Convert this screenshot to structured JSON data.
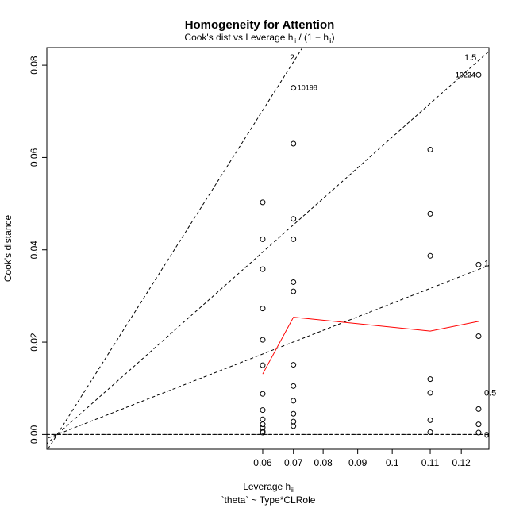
{
  "chart_data": {
    "type": "scatter",
    "title": "Homogeneity for Attention",
    "subtitle": "Cook's dist vs Leverage  h",
    "subtitle_sub": "ii",
    "subtitle_tail_1": " / (1 − h",
    "subtitle_tail_sub": "ii",
    "subtitle_tail_2": ")",
    "xlabel": "Leverage  h",
    "xlabel_sub": "ii",
    "xlabel_2": "`theta` ~ Type*CLRole",
    "ylabel": "Cook's distance",
    "xlim": [
      0.0,
      0.128
    ],
    "ylim": [
      -0.0032,
      0.0838
    ],
    "x_ticks": [
      {
        "value": 0.0625,
        "label": "0.06"
      },
      {
        "value": 0.0714,
        "label": "0.07"
      },
      {
        "value": 0.08,
        "label": "0.08"
      },
      {
        "value": 0.09,
        "label": "0.09"
      },
      {
        "value": 0.1,
        "label": "0.1"
      },
      {
        "value": 0.111,
        "label": "0.11"
      },
      {
        "value": 0.12,
        "label": "0.12"
      }
    ],
    "y_ticks": [
      {
        "value": 0.0,
        "label": "0.00"
      },
      {
        "value": 0.02,
        "label": "0.02"
      },
      {
        "value": 0.04,
        "label": "0.04"
      },
      {
        "value": 0.06,
        "label": "0.06"
      },
      {
        "value": 0.08,
        "label": "0.08"
      }
    ],
    "points": [
      {
        "x": 0.0625,
        "y": 0.0503
      },
      {
        "x": 0.0625,
        "y": 0.0423
      },
      {
        "x": 0.0625,
        "y": 0.0358
      },
      {
        "x": 0.0625,
        "y": 0.0273
      },
      {
        "x": 0.0625,
        "y": 0.0205
      },
      {
        "x": 0.0625,
        "y": 0.015
      },
      {
        "x": 0.0625,
        "y": 0.0088
      },
      {
        "x": 0.0625,
        "y": 0.0053
      },
      {
        "x": 0.0625,
        "y": 0.0033
      },
      {
        "x": 0.0625,
        "y": 0.0022
      },
      {
        "x": 0.0625,
        "y": 0.0015
      },
      {
        "x": 0.0625,
        "y": 0.0007
      },
      {
        "x": 0.0625,
        "y": 0.0004
      },
      {
        "x": 0.0714,
        "y": 0.0751
      },
      {
        "x": 0.0714,
        "y": 0.063
      },
      {
        "x": 0.0714,
        "y": 0.0467
      },
      {
        "x": 0.0714,
        "y": 0.0423
      },
      {
        "x": 0.0714,
        "y": 0.033
      },
      {
        "x": 0.0714,
        "y": 0.031
      },
      {
        "x": 0.0714,
        "y": 0.0151
      },
      {
        "x": 0.0714,
        "y": 0.0105
      },
      {
        "x": 0.0714,
        "y": 0.0073
      },
      {
        "x": 0.0714,
        "y": 0.0045
      },
      {
        "x": 0.0714,
        "y": 0.0028
      },
      {
        "x": 0.0714,
        "y": 0.0018
      },
      {
        "x": 0.111,
        "y": 0.0617
      },
      {
        "x": 0.111,
        "y": 0.0478
      },
      {
        "x": 0.111,
        "y": 0.0387
      },
      {
        "x": 0.111,
        "y": 0.012
      },
      {
        "x": 0.111,
        "y": 0.009
      },
      {
        "x": 0.111,
        "y": 0.0031
      },
      {
        "x": 0.111,
        "y": 0.0005
      },
      {
        "x": 0.125,
        "y": 0.0779
      },
      {
        "x": 0.125,
        "y": 0.0368
      },
      {
        "x": 0.125,
        "y": 0.0213
      },
      {
        "x": 0.125,
        "y": 0.0055
      },
      {
        "x": 0.125,
        "y": 0.0022
      },
      {
        "x": 0.125,
        "y": 0.0004
      }
    ],
    "point_labels": [
      {
        "x": 0.0714,
        "y": 0.0751,
        "text": "10198",
        "anchor": "start"
      },
      {
        "x": 0.125,
        "y": 0.0779,
        "text": "10234",
        "anchor": "end"
      },
      {
        "x": 0.125,
        "y": 0.0779,
        "text": "10224",
        "anchor": "end"
      }
    ],
    "smoother": {
      "color": "#ff0000",
      "x": [
        0.0625,
        0.0714,
        0.111,
        0.125
      ],
      "y": [
        0.0131,
        0.0254,
        0.0224,
        0.0245
      ]
    },
    "reference_line": {
      "y": 0.0
    },
    "contours": [
      {
        "level": 0.5,
        "label": "0.5",
        "label_y": 0.0091
      },
      {
        "level": 1,
        "label": "1",
        "label_y": 0.0371
      },
      {
        "level": 1.5,
        "label": "1.5",
        "label_y": 0.0817
      },
      {
        "level": 2,
        "label": "2",
        "label_y": 0.0817
      }
    ],
    "contour_origin": {
      "x": 0.003,
      "y": 0.0
    },
    "contour_slopes": [
      0.0,
      0.293,
      0.664,
      1.18
    ]
  }
}
